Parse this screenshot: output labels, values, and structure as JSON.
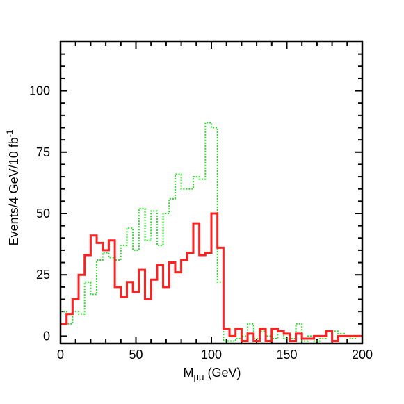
{
  "chart_data": {
    "type": "histogram",
    "xlabel_main": "M",
    "xlabel_sub": "μμ",
    "xlabel_unit": " (GeV)",
    "ylabel_main": "Events/4 GeV/10 fb",
    "ylabel_sup": "-1",
    "xlim": [
      0,
      200
    ],
    "ylim": [
      -3,
      120
    ],
    "bin_width": 4,
    "x_ticks": [
      0,
      50,
      100,
      150,
      200
    ],
    "y_ticks": [
      0,
      25,
      50,
      75,
      100
    ],
    "grid": false,
    "series": [
      {
        "line_color": "#ff2020",
        "line_style": "solid",
        "values": [
          5,
          9,
          15,
          25,
          33,
          41,
          38,
          35,
          39,
          20,
          16,
          22,
          18,
          27,
          15,
          23,
          29,
          20,
          30,
          26,
          31,
          34,
          46,
          33,
          34,
          50,
          36,
          3,
          0,
          3,
          -2,
          1,
          -2,
          3,
          -2,
          3,
          2,
          1,
          -2,
          1,
          -1,
          -1,
          0,
          0,
          2,
          -2,
          0,
          0,
          0,
          0
        ]
      },
      {
        "line_color": "#22dd22",
        "line_style": "dotted",
        "values": [
          10,
          5,
          10,
          9,
          22,
          17,
          31,
          34,
          32,
          31,
          37,
          44,
          35,
          52,
          39,
          51,
          37,
          50,
          56,
          66,
          60,
          60,
          65,
          64,
          87,
          85,
          22,
          -2,
          -2,
          -1,
          0,
          5,
          -1,
          2,
          0,
          -1,
          2,
          -1,
          -1,
          5,
          -2,
          0,
          -2,
          -1,
          2,
          2,
          1,
          0,
          -1,
          0
        ]
      }
    ]
  }
}
